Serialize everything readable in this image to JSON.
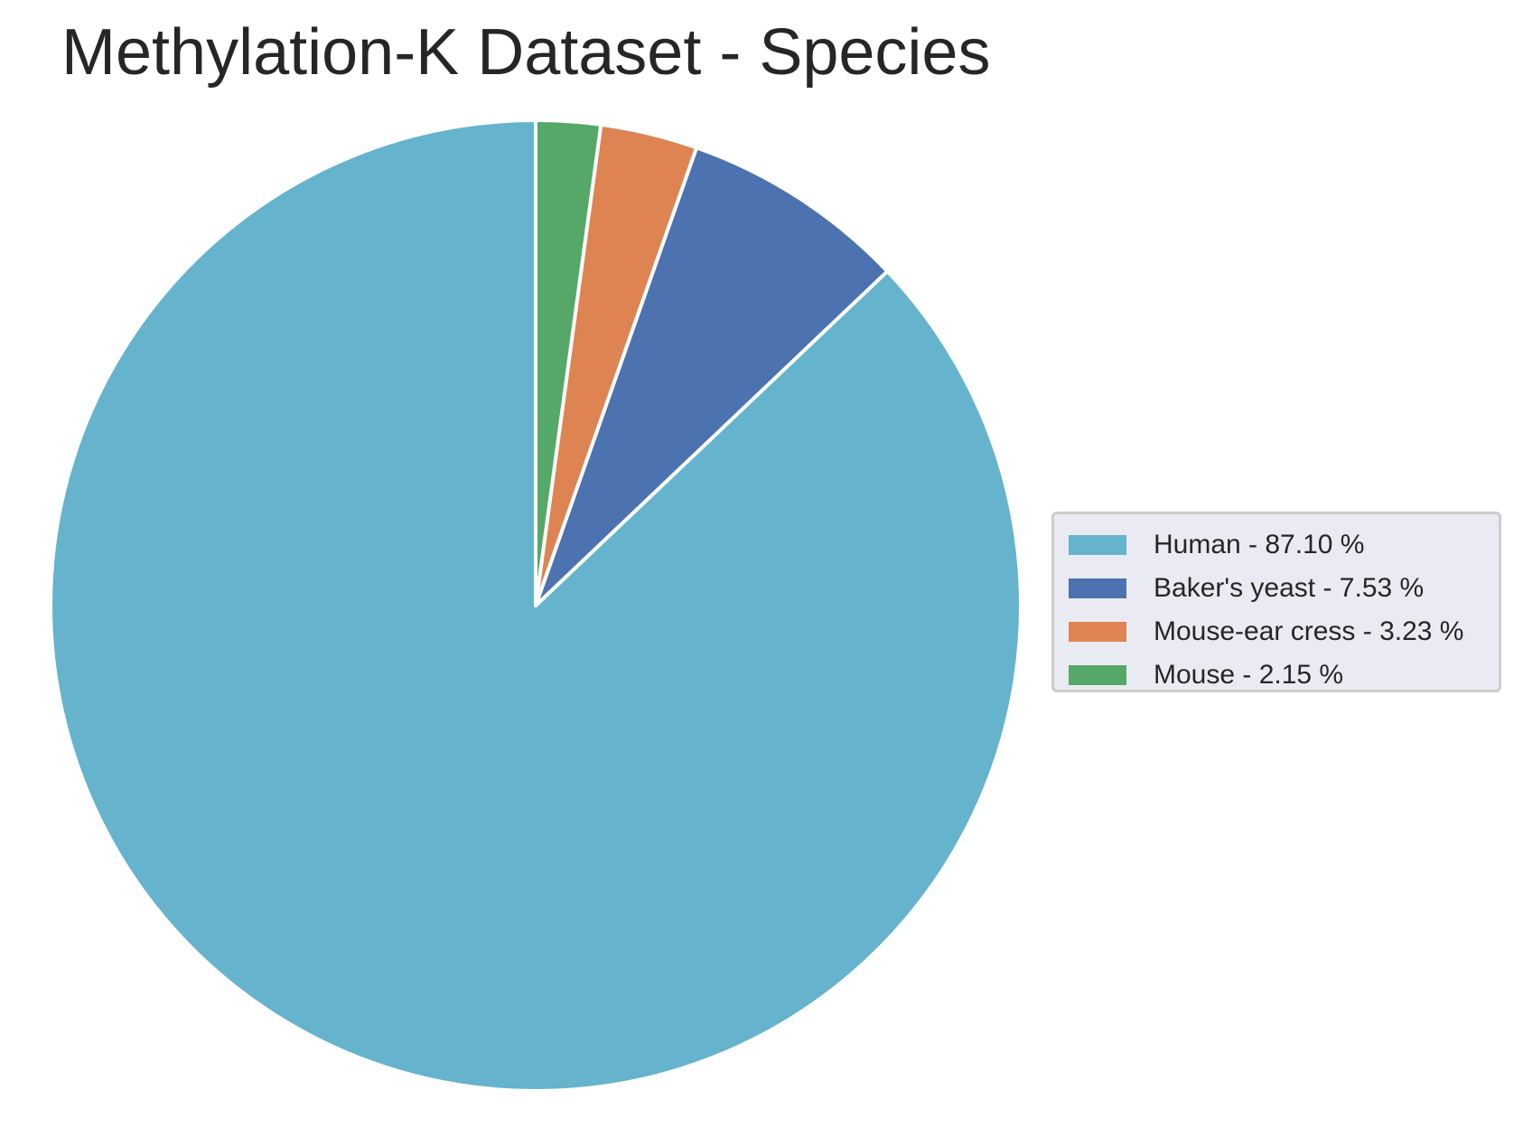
{
  "chart_data": {
    "type": "pie",
    "title": "Methylation-K Dataset - Species",
    "slices": [
      {
        "label": "Human - 87.10 %",
        "value": 87.1,
        "color": "#66b3cd"
      },
      {
        "label": "Baker's yeast - 7.53 %",
        "value": 7.53,
        "color": "#4c72b0"
      },
      {
        "label": "Mouse-ear cress - 3.23 %",
        "value": 3.23,
        "color": "#dd8452"
      },
      {
        "label": "Mouse - 2.15 %",
        "value": 2.15,
        "color": "#55a868"
      }
    ],
    "legend_position": "right",
    "start_angle": "top",
    "direction": "counterclockwise"
  }
}
